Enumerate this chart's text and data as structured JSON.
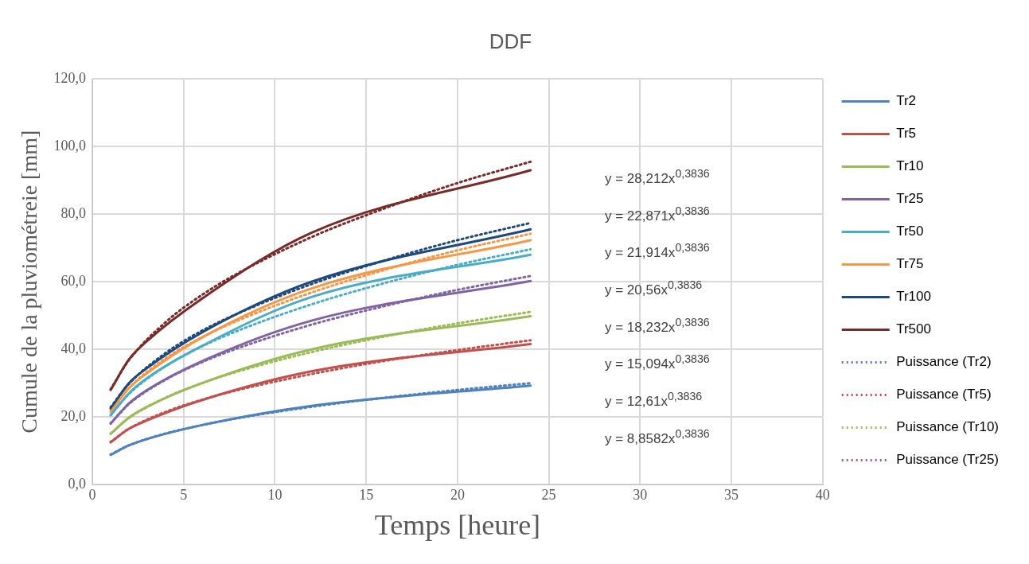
{
  "chart_data": {
    "type": "line",
    "title": "DDF",
    "xlabel": "Temps [heure]",
    "ylabel": "Cumule de la pluviométreie [mm]",
    "xlim": [
      0,
      40
    ],
    "xticks": [
      0,
      5,
      10,
      15,
      20,
      25,
      30,
      35,
      40
    ],
    "ylim": [
      0,
      120
    ],
    "yticks": [
      {
        "value": 0,
        "label": "0,0"
      },
      {
        "value": 20,
        "label": "20,0"
      },
      {
        "value": 40,
        "label": "40,0"
      },
      {
        "value": 60,
        "label": "60,0"
      },
      {
        "value": 80,
        "label": "80,0"
      },
      {
        "value": 100,
        "label": "100,0"
      },
      {
        "value": 120,
        "label": "120,0"
      }
    ],
    "grid": true,
    "legend": "right",
    "marker": "none",
    "x": [
      1,
      2,
      3,
      6,
      12,
      24
    ],
    "series": [
      {
        "name": "Tr2",
        "color": "#4f81bd",
        "values": [
          8.8,
          11.6,
          13.5,
          17.6,
          23.3,
          29.3
        ]
      },
      {
        "name": "Tr5",
        "color": "#c0504d",
        "values": [
          12.5,
          16.5,
          19,
          25,
          33.5,
          41.6
        ]
      },
      {
        "name": "Tr10",
        "color": "#9bbb59",
        "values": [
          15,
          19.8,
          23,
          30,
          40,
          49.8
        ]
      },
      {
        "name": "Tr25",
        "color": "#8064a2",
        "values": [
          18,
          24,
          28,
          36.5,
          48.5,
          60.2
        ]
      },
      {
        "name": "Tr50",
        "color": "#4bacc6",
        "values": [
          20.5,
          27,
          31.5,
          41,
          55.5,
          68
        ]
      },
      {
        "name": "Tr75",
        "color": "#f79646",
        "values": [
          21.5,
          28.5,
          33,
          43.5,
          58,
          72.3
        ]
      },
      {
        "name": "Tr100",
        "color": "#1f497d",
        "values": [
          22.5,
          30,
          34.5,
          45,
          60,
          75.5
        ]
      },
      {
        "name": "Tr500",
        "color": "#772c2a",
        "values": [
          28,
          37,
          42.5,
          55,
          74.5,
          93
        ]
      },
      {
        "name": "Puissance (Tr2)",
        "color": "#4f81bd",
        "line_style": "dotted",
        "x": [
          1,
          2,
          4,
          6,
          8,
          12,
          16,
          20,
          24
        ],
        "values": [
          8.9,
          11.6,
          15.1,
          17.6,
          19.7,
          23.0,
          25.7,
          28.0,
          30.0
        ]
      },
      {
        "name": "Puissance (Tr5)",
        "color": "#c0504d",
        "line_style": "dotted",
        "x": [
          1,
          2,
          4,
          6,
          8,
          12,
          16,
          20,
          24
        ],
        "values": [
          12.6,
          16.5,
          21.5,
          25.1,
          28.0,
          32.7,
          36.6,
          39.8,
          42.7
        ]
      },
      {
        "name": "Puissance (Tr10)",
        "color": "#9bbb59",
        "line_style": "dotted",
        "x": [
          1,
          2,
          4,
          6,
          8,
          12,
          16,
          20,
          24
        ],
        "values": [
          15.1,
          19.7,
          25.7,
          30.0,
          33.5,
          39.2,
          43.8,
          47.7,
          51.1
        ]
      },
      {
        "name": "Puissance (Tr25)",
        "color": "#8064a2",
        "line_style": "dotted",
        "x": [
          1,
          2,
          4,
          6,
          8,
          12,
          16,
          20,
          24
        ],
        "values": [
          18.2,
          23.8,
          31.0,
          36.2,
          40.4,
          47.3,
          52.8,
          57.6,
          61.7
        ]
      },
      {
        "color": "#4bacc6",
        "line_style": "dotted",
        "x": [
          1,
          2,
          4,
          6,
          8,
          12,
          16,
          20,
          24
        ],
        "values": [
          20.6,
          26.8,
          35.0,
          40.9,
          45.6,
          53.3,
          59.6,
          65.0,
          69.6
        ]
      },
      {
        "color": "#f79646",
        "line_style": "dotted",
        "x": [
          1,
          2,
          4,
          6,
          8,
          12,
          16,
          20,
          24
        ],
        "values": [
          21.9,
          28.6,
          37.3,
          43.6,
          48.6,
          56.8,
          63.5,
          69.3,
          74.2
        ]
      },
      {
        "color": "#1f497d",
        "line_style": "dotted",
        "x": [
          1,
          2,
          4,
          6,
          8,
          12,
          16,
          20,
          24
        ],
        "values": [
          22.9,
          29.8,
          38.9,
          45.5,
          50.7,
          59.3,
          66.3,
          72.3,
          77.4
        ]
      },
      {
        "color": "#772c2a",
        "line_style": "dotted",
        "x": [
          1,
          2,
          4,
          6,
          8,
          12,
          16,
          20,
          24
        ],
        "values": [
          28.2,
          36.8,
          48.0,
          56.1,
          62.6,
          73.2,
          81.7,
          89.2,
          95.5
        ]
      }
    ],
    "annotations": [
      "y = 28,212x$^{0,3836}$",
      "y = 22,871x$^{0,3836}$",
      "y = 21,914x$^{0,3836}$",
      "y = 20,56x$^{0,3836}$",
      "y = 18,232x$^{0,3836}$",
      "y = 15,094x$^{0,3836}$",
      "y = 12,61x$^{0,3836}$",
      "y = 8,8582x$^{0,3836}$"
    ]
  }
}
